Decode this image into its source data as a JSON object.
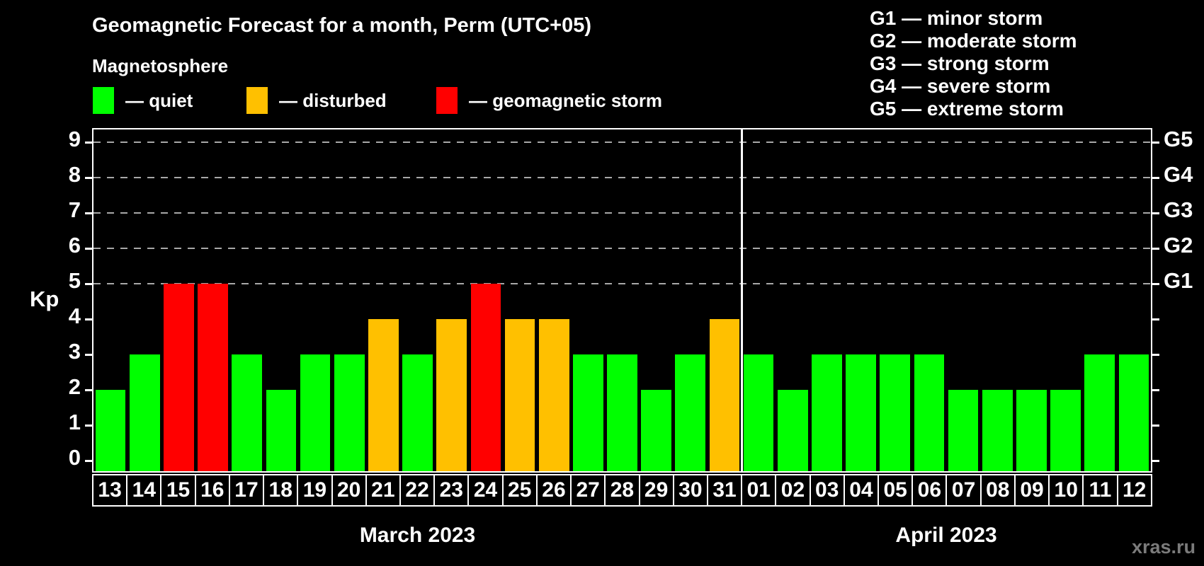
{
  "header": {
    "title": "Geomagnetic Forecast for a month, Perm (UTC+05)"
  },
  "magnetosphere": {
    "title": "Magnetosphere",
    "items": [
      {
        "key": "quiet",
        "label": "— quiet",
        "color": "#00ff00"
      },
      {
        "key": "disturbed",
        "label": "— disturbed",
        "color": "#ffc000"
      },
      {
        "key": "storm",
        "label": "— geomagnetic storm",
        "color": "#ff0000"
      }
    ]
  },
  "g_scale_legend": {
    "lines": [
      "G1 — minor storm",
      "G2 — moderate storm",
      "G3 — strong storm",
      "G4 — severe storm",
      "G5 — extreme storm"
    ]
  },
  "watermark": "xras.ru",
  "chart_data": {
    "type": "bar",
    "title": "Geomagnetic Forecast for a month, Perm (UTC+05)",
    "ylabel": "Kp",
    "ylim": [
      0,
      9
    ],
    "yticks": [
      0,
      1,
      2,
      3,
      4,
      5,
      6,
      7,
      8,
      9
    ],
    "gridlines_at": [
      5,
      6,
      7,
      8,
      9
    ],
    "grid": "dashed, only at storm levels Kp 5-9",
    "legend_position": "top",
    "right_axis": {
      "labels": [
        {
          "kp": 5,
          "label": "G1"
        },
        {
          "kp": 6,
          "label": "G2"
        },
        {
          "kp": 7,
          "label": "G3"
        },
        {
          "kp": 8,
          "label": "G4"
        },
        {
          "kp": 9,
          "label": "G5"
        }
      ]
    },
    "status_colors": {
      "quiet": "#00ff00",
      "disturbed": "#ffc000",
      "storm": "#ff0000"
    },
    "months": [
      {
        "label": "March 2023",
        "days": 19
      },
      {
        "label": "April 2023",
        "days": 12
      }
    ],
    "categories": [
      "13",
      "14",
      "15",
      "16",
      "17",
      "18",
      "19",
      "20",
      "21",
      "22",
      "23",
      "24",
      "25",
      "26",
      "27",
      "28",
      "29",
      "30",
      "31",
      "01",
      "02",
      "03",
      "04",
      "05",
      "06",
      "07",
      "08",
      "09",
      "10",
      "11",
      "12"
    ],
    "values": [
      2,
      3,
      5,
      5,
      3,
      2,
      3,
      3,
      4,
      3,
      4,
      5,
      4,
      4,
      3,
      3,
      2,
      3,
      4,
      3,
      2,
      3,
      3,
      3,
      3,
      2,
      2,
      2,
      2,
      3,
      3
    ],
    "statuses": [
      "quiet",
      "quiet",
      "storm",
      "storm",
      "quiet",
      "quiet",
      "quiet",
      "quiet",
      "disturbed",
      "quiet",
      "disturbed",
      "storm",
      "disturbed",
      "disturbed",
      "quiet",
      "quiet",
      "quiet",
      "quiet",
      "disturbed",
      "quiet",
      "quiet",
      "quiet",
      "quiet",
      "quiet",
      "quiet",
      "quiet",
      "quiet",
      "quiet",
      "quiet",
      "quiet",
      "quiet"
    ]
  }
}
